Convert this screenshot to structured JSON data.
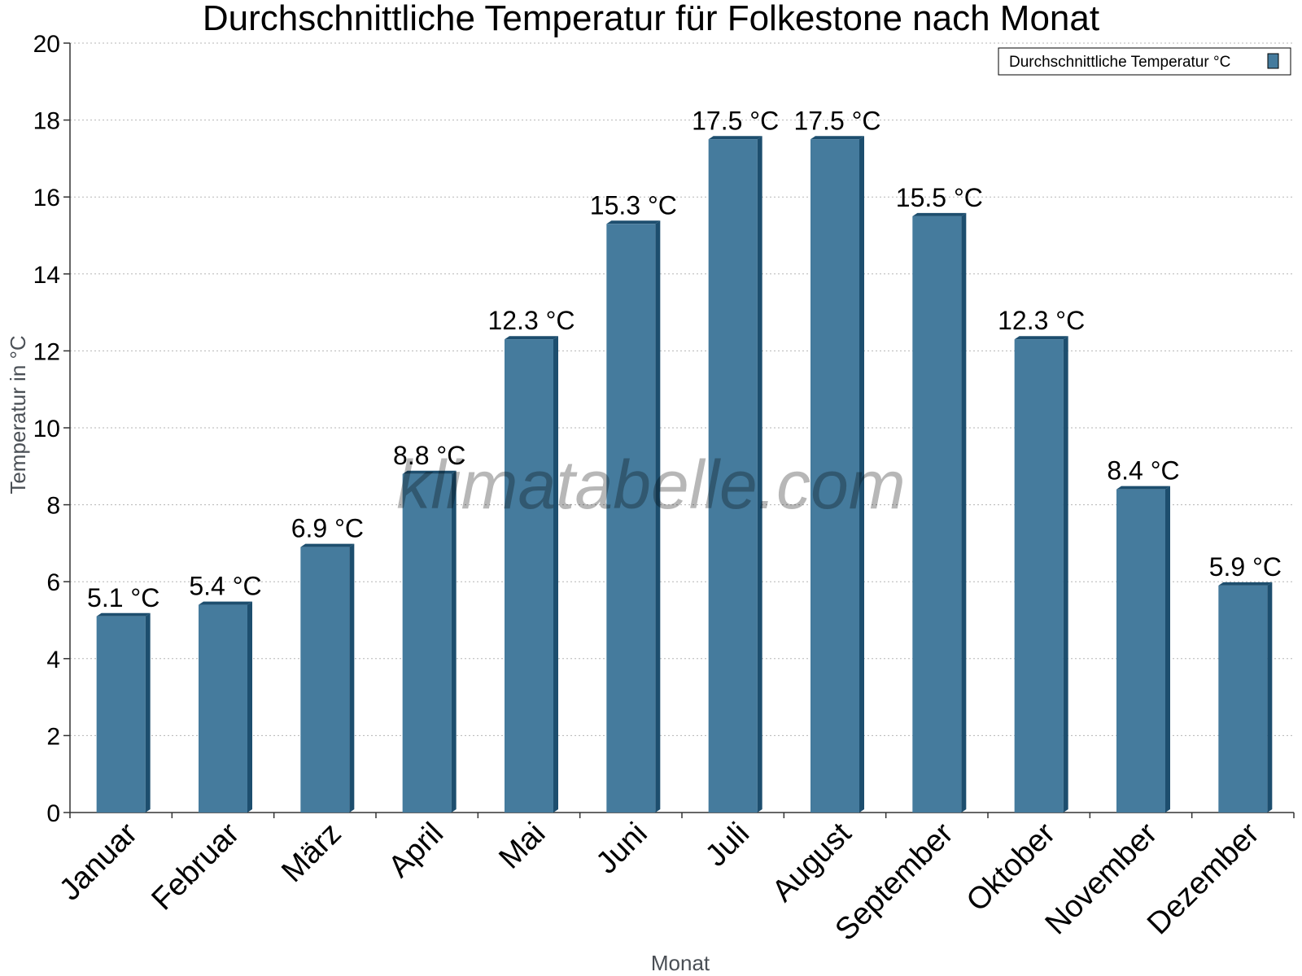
{
  "chart_data": {
    "type": "bar",
    "title": "Durchschnittliche Temperatur für Folkestone nach Monat",
    "xlabel": "Monat",
    "ylabel": "Temperatur in °C",
    "ylim": [
      0,
      20
    ],
    "yticks": [
      0,
      2,
      4,
      6,
      8,
      10,
      12,
      14,
      16,
      18,
      20
    ],
    "grid": true,
    "legend_position": "top-right",
    "unit_suffix": " °C",
    "categories": [
      "Januar",
      "Februar",
      "März",
      "April",
      "Mai",
      "Juni",
      "Juli",
      "August",
      "September",
      "Oktober",
      "November",
      "Dezember"
    ],
    "series": [
      {
        "name": "Durchschnittliche Temperatur °C",
        "values": [
          5.1,
          5.4,
          6.9,
          8.8,
          12.3,
          15.3,
          17.5,
          17.5,
          15.5,
          12.3,
          8.4,
          5.9
        ],
        "color": "#457b9d",
        "side_color": "#1d4e6e"
      }
    ],
    "watermark": "klimatabelle.com"
  }
}
